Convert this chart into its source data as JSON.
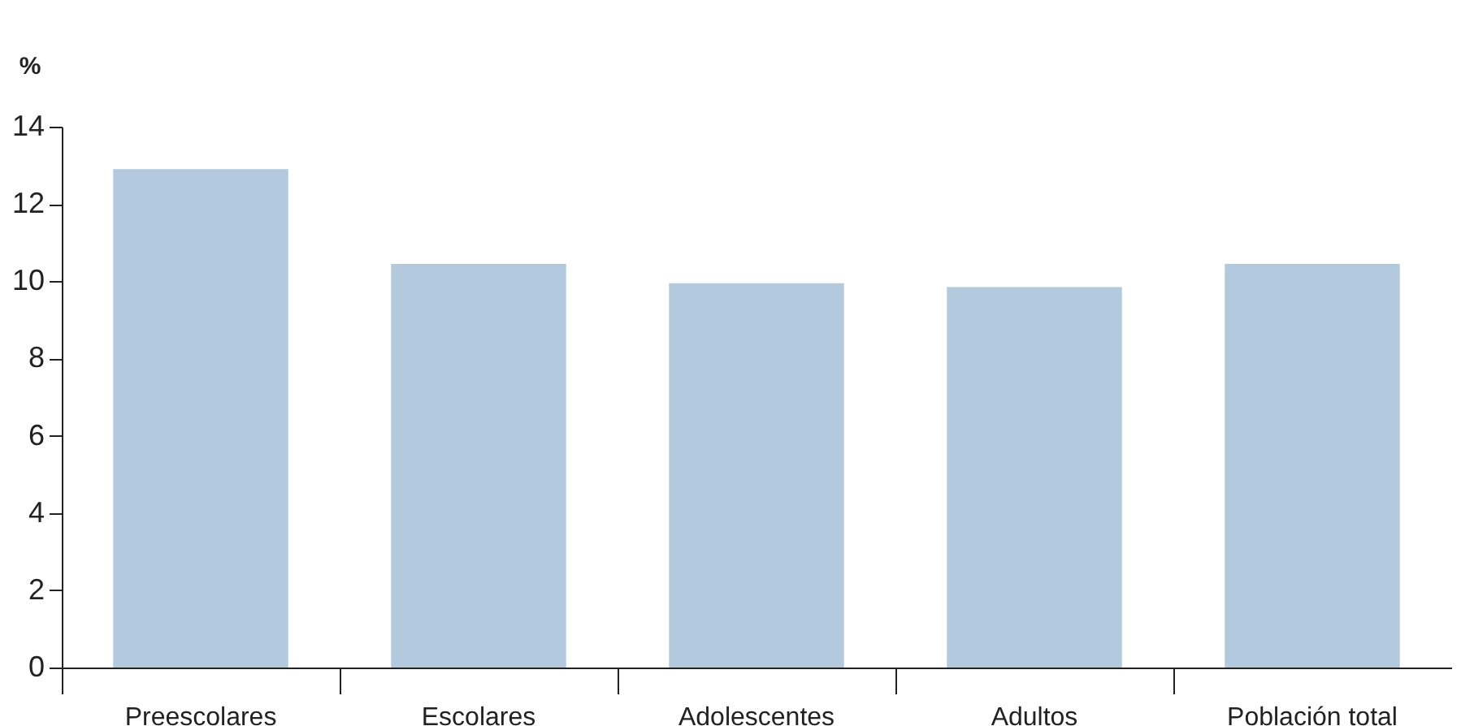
{
  "chart_data": {
    "type": "bar",
    "ylabel": "%",
    "categories": [
      "Preescolares",
      "Escolares",
      "Adolescentes",
      "Adultos",
      "Población total"
    ],
    "values": [
      12.9,
      10.45,
      9.95,
      9.85,
      10.45
    ],
    "color": "#b3cade",
    "ylim": [
      0,
      14
    ],
    "yticks": [
      0,
      2,
      4,
      6,
      8,
      10,
      12,
      14
    ],
    "grid": false
  }
}
